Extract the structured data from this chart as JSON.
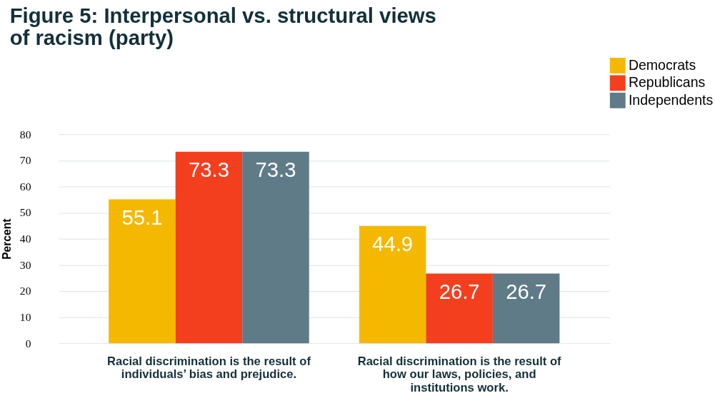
{
  "chart_data": {
    "type": "bar",
    "title": "Figure 5: Interpersonal vs. structural views of racism (party)",
    "ylabel": "Percent",
    "categories": [
      "Racial discrimination is the result of individuals’ bias and prejudice.",
      "Racial discrimination is the result of how our laws, policies, and institutions work."
    ],
    "series": [
      {
        "name": "Democrats",
        "color": "#f5b800",
        "values": [
          55.1,
          44.9
        ]
      },
      {
        "name": "Republicans",
        "color": "#f43f1f",
        "values": [
          73.3,
          26.7
        ]
      },
      {
        "name": "Independents",
        "color": "#5e7b87",
        "values": [
          73.3,
          26.7
        ]
      }
    ],
    "ylim": [
      0,
      80
    ],
    "yticks": [
      0,
      10,
      20,
      30,
      40,
      50,
      60,
      70,
      80
    ],
    "grid": "y",
    "legend": "top right",
    "data_labels": true
  }
}
